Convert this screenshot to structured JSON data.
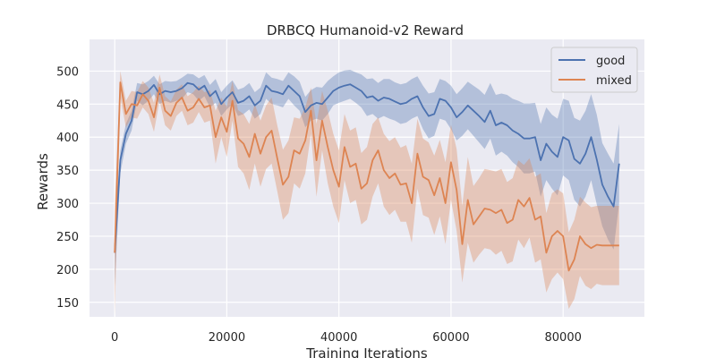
{
  "chart_data": {
    "type": "line",
    "title": "DRBCQ Humanoid-v2 Reward",
    "xlabel": "Training Iterations",
    "ylabel": "Rewards",
    "xlim": [
      -4500,
      94500
    ],
    "ylim": [
      128,
      548
    ],
    "xticks": [
      0,
      20000,
      40000,
      60000,
      80000
    ],
    "xtick_labels": [
      "0",
      "20000",
      "40000",
      "60000",
      "80000"
    ],
    "yticks": [
      150,
      200,
      250,
      300,
      350,
      400,
      450,
      500
    ],
    "ytick_labels": [
      "150",
      "200",
      "250",
      "300",
      "350",
      "400",
      "450",
      "500"
    ],
    "grid": true,
    "legend": "top-right",
    "background_color": "#EAEAF2",
    "series": [
      {
        "name": "good",
        "color": "#4C72B0",
        "x": [
          0,
          1000,
          2000,
          3000,
          4000,
          5000,
          6000,
          7000,
          8000,
          9000,
          10000,
          11000,
          12000,
          13000,
          14000,
          15000,
          16000,
          17000,
          18000,
          19000,
          20000,
          21000,
          22000,
          23000,
          24000,
          25000,
          26000,
          27000,
          28000,
          29000,
          30000,
          31000,
          32000,
          33000,
          34000,
          35000,
          36000,
          37000,
          38000,
          39000,
          40000,
          41000,
          42000,
          43000,
          44000,
          45000,
          46000,
          47000,
          48000,
          49000,
          50000,
          51000,
          52000,
          53000,
          54000,
          55000,
          56000,
          57000,
          58000,
          59000,
          60000,
          61000,
          62000,
          63000,
          64000,
          65000,
          66000,
          67000,
          68000,
          69000,
          70000,
          71000,
          72000,
          73000,
          74000,
          75000,
          76000,
          77000,
          78000,
          79000,
          80000,
          81000,
          82000,
          83000,
          84000,
          85000,
          86000,
          87000,
          88000,
          89000,
          90000
        ],
        "y": [
          225,
          365,
          405,
          425,
          468,
          465,
          470,
          479,
          465,
          470,
          468,
          470,
          474,
          482,
          480,
          472,
          478,
          462,
          470,
          450,
          460,
          468,
          452,
          455,
          462,
          448,
          455,
          478,
          470,
          468,
          465,
          478,
          470,
          462,
          438,
          448,
          452,
          450,
          460,
          470,
          475,
          478,
          480,
          475,
          470,
          460,
          462,
          455,
          460,
          458,
          454,
          450,
          452,
          458,
          462,
          445,
          432,
          435,
          458,
          455,
          445,
          430,
          438,
          448,
          440,
          432,
          423,
          440,
          418,
          422,
          418,
          410,
          405,
          398,
          398,
          400,
          365,
          390,
          378,
          370,
          400,
          395,
          367,
          360,
          375,
          400,
          366,
          328,
          310,
          295,
          360
        ],
        "lower": [
          175,
          345,
          390,
          410,
          455,
          448,
          455,
          465,
          450,
          455,
          452,
          455,
          458,
          468,
          465,
          455,
          462,
          445,
          452,
          432,
          442,
          450,
          432,
          435,
          442,
          428,
          435,
          458,
          450,
          448,
          445,
          458,
          448,
          440,
          415,
          425,
          428,
          425,
          435,
          448,
          452,
          455,
          458,
          452,
          445,
          432,
          435,
          428,
          432,
          428,
          425,
          420,
          422,
          428,
          432,
          412,
          398,
          402,
          428,
          425,
          412,
          395,
          402,
          412,
          402,
          392,
          382,
          398,
          372,
          378,
          372,
          362,
          355,
          345,
          345,
          348,
          310,
          335,
          322,
          312,
          342,
          335,
          305,
          295,
          310,
          335,
          298,
          265,
          245,
          230,
          300
        ],
        "upper": [
          260,
          380,
          420,
          440,
          482,
          480,
          485,
          493,
          480,
          485,
          484,
          485,
          490,
          496,
          495,
          489,
          494,
          479,
          488,
          468,
          478,
          486,
          472,
          475,
          482,
          468,
          475,
          498,
          490,
          488,
          485,
          498,
          492,
          484,
          461,
          471,
          476,
          475,
          485,
          492,
          498,
          501,
          502,
          498,
          495,
          488,
          489,
          482,
          488,
          488,
          483,
          480,
          482,
          488,
          492,
          478,
          466,
          468,
          488,
          485,
          478,
          465,
          474,
          484,
          478,
          472,
          464,
          482,
          464,
          466,
          464,
          458,
          455,
          451,
          451,
          452,
          420,
          445,
          434,
          428,
          458,
          455,
          429,
          425,
          440,
          465,
          434,
          391,
          375,
          360,
          420
        ]
      },
      {
        "name": "mixed",
        "color": "#DD8452",
        "x": [
          0,
          1000,
          2000,
          3000,
          4000,
          5000,
          6000,
          7000,
          8000,
          9000,
          10000,
          11000,
          12000,
          13000,
          14000,
          15000,
          16000,
          17000,
          18000,
          19000,
          20000,
          21000,
          22000,
          23000,
          24000,
          25000,
          26000,
          27000,
          28000,
          29000,
          30000,
          31000,
          32000,
          33000,
          34000,
          35000,
          36000,
          37000,
          38000,
          39000,
          40000,
          41000,
          42000,
          43000,
          44000,
          45000,
          46000,
          47000,
          48000,
          49000,
          50000,
          51000,
          52000,
          53000,
          54000,
          55000,
          56000,
          57000,
          58000,
          59000,
          60000,
          61000,
          62000,
          63000,
          64000,
          65000,
          66000,
          67000,
          68000,
          69000,
          70000,
          71000,
          72000,
          73000,
          74000,
          75000,
          76000,
          77000,
          78000,
          79000,
          80000,
          81000,
          82000,
          83000,
          84000,
          85000,
          86000,
          87000,
          88000,
          89000,
          90000
        ],
        "y": [
          225,
          483,
          435,
          450,
          448,
          465,
          455,
          430,
          475,
          440,
          432,
          452,
          460,
          440,
          445,
          458,
          445,
          448,
          400,
          430,
          408,
          455,
          398,
          390,
          370,
          405,
          375,
          400,
          410,
          368,
          328,
          340,
          380,
          375,
          395,
          440,
          365,
          425,
          385,
          350,
          325,
          385,
          355,
          360,
          322,
          330,
          365,
          380,
          350,
          338,
          345,
          328,
          330,
          300,
          375,
          340,
          335,
          312,
          338,
          300,
          362,
          320,
          238,
          305,
          268,
          280,
          292,
          290,
          285,
          290,
          270,
          275,
          305,
          295,
          308,
          275,
          280,
          225,
          250,
          258,
          250,
          198,
          215,
          250,
          238,
          232,
          237,
          236,
          236,
          236,
          236
        ],
        "lower": [
          130,
          460,
          415,
          430,
          428,
          445,
          435,
          408,
          455,
          418,
          410,
          432,
          440,
          418,
          422,
          438,
          422,
          425,
          360,
          400,
          370,
          425,
          355,
          345,
          320,
          360,
          325,
          352,
          360,
          318,
          275,
          285,
          330,
          322,
          345,
          405,
          310,
          380,
          330,
          295,
          270,
          335,
          300,
          305,
          268,
          275,
          310,
          330,
          295,
          282,
          290,
          272,
          272,
          240,
          322,
          282,
          278,
          252,
          280,
          238,
          305,
          258,
          180,
          240,
          210,
          222,
          232,
          230,
          222,
          228,
          208,
          212,
          245,
          232,
          248,
          210,
          215,
          165,
          185,
          195,
          185,
          140,
          155,
          190,
          175,
          170,
          178,
          176,
          176,
          176,
          176
        ],
        "upper": [
          295,
          500,
          455,
          470,
          468,
          485,
          475,
          452,
          495,
          462,
          454,
          472,
          480,
          462,
          468,
          478,
          468,
          471,
          440,
          460,
          446,
          485,
          441,
          435,
          420,
          450,
          425,
          448,
          460,
          418,
          381,
          395,
          430,
          428,
          445,
          475,
          420,
          470,
          440,
          405,
          380,
          435,
          410,
          415,
          376,
          385,
          420,
          430,
          405,
          394,
          400,
          384,
          388,
          360,
          428,
          398,
          392,
          372,
          396,
          362,
          419,
          382,
          296,
          370,
          326,
          338,
          352,
          350,
          348,
          352,
          332,
          338,
          365,
          358,
          368,
          340,
          345,
          285,
          315,
          321,
          315,
          256,
          275,
          310,
          301,
          294,
          296,
          296,
          296,
          296,
          296
        ]
      }
    ]
  }
}
